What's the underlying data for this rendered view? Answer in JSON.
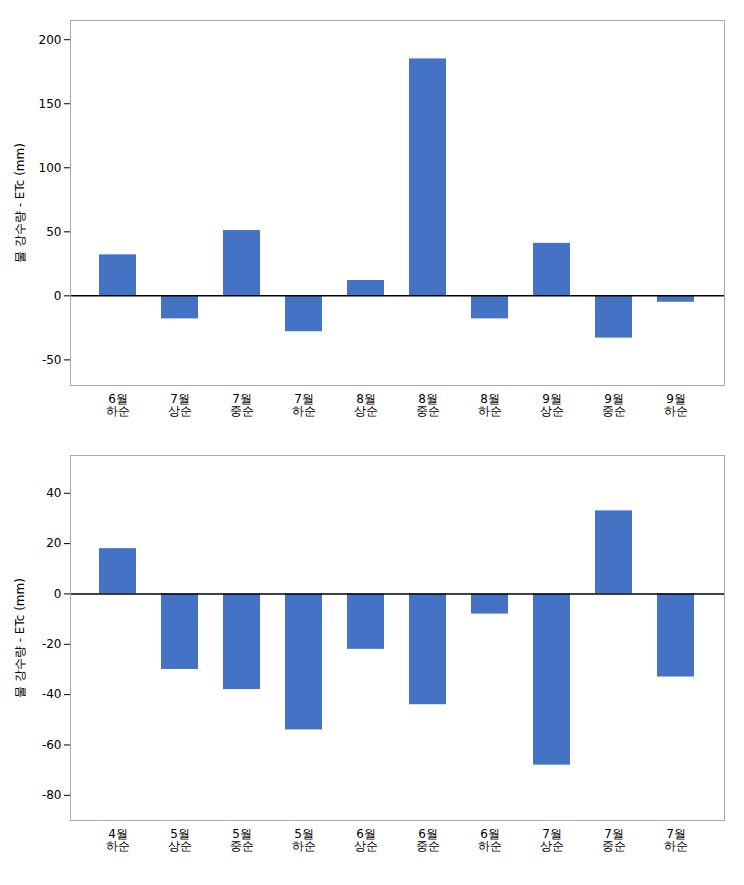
{
  "chart_data": [
    {
      "type": "bar",
      "categories": [
        "6월\n하순",
        "7월\n상순",
        "7월\n중순",
        "7월\n하순",
        "8월\n상순",
        "8월\n중순",
        "8월\n하순",
        "9월\n상순",
        "9월\n중순",
        "9월\n하순"
      ],
      "values": [
        32,
        -18,
        51,
        -28,
        12,
        185,
        -18,
        41,
        -33,
        -5
      ],
      "color": "#4472C4",
      "ylabel": "물 강수량 - ETc (mm)",
      "ylim": [
        -70,
        215
      ],
      "yticks": [
        -50,
        0,
        50,
        100,
        150,
        200
      ],
      "grid": false
    },
    {
      "type": "bar",
      "categories": [
        "4월\n하순",
        "5월\n상순",
        "5월\n중순",
        "5월\n하순",
        "6월\n상순",
        "6월\n중순",
        "6월\n하순",
        "7월\n상순",
        "7월\n중순",
        "7월\n하순"
      ],
      "values": [
        18,
        -30,
        -38,
        -54,
        -22,
        -44,
        -8,
        -68,
        33,
        -33
      ],
      "color": "#4472C4",
      "ylabel": "물 강수량 - ETc (mm)",
      "ylim": [
        -90,
        55
      ],
      "yticks": [
        -80,
        -60,
        -40,
        -20,
        0,
        20,
        40
      ],
      "grid": false
    }
  ]
}
